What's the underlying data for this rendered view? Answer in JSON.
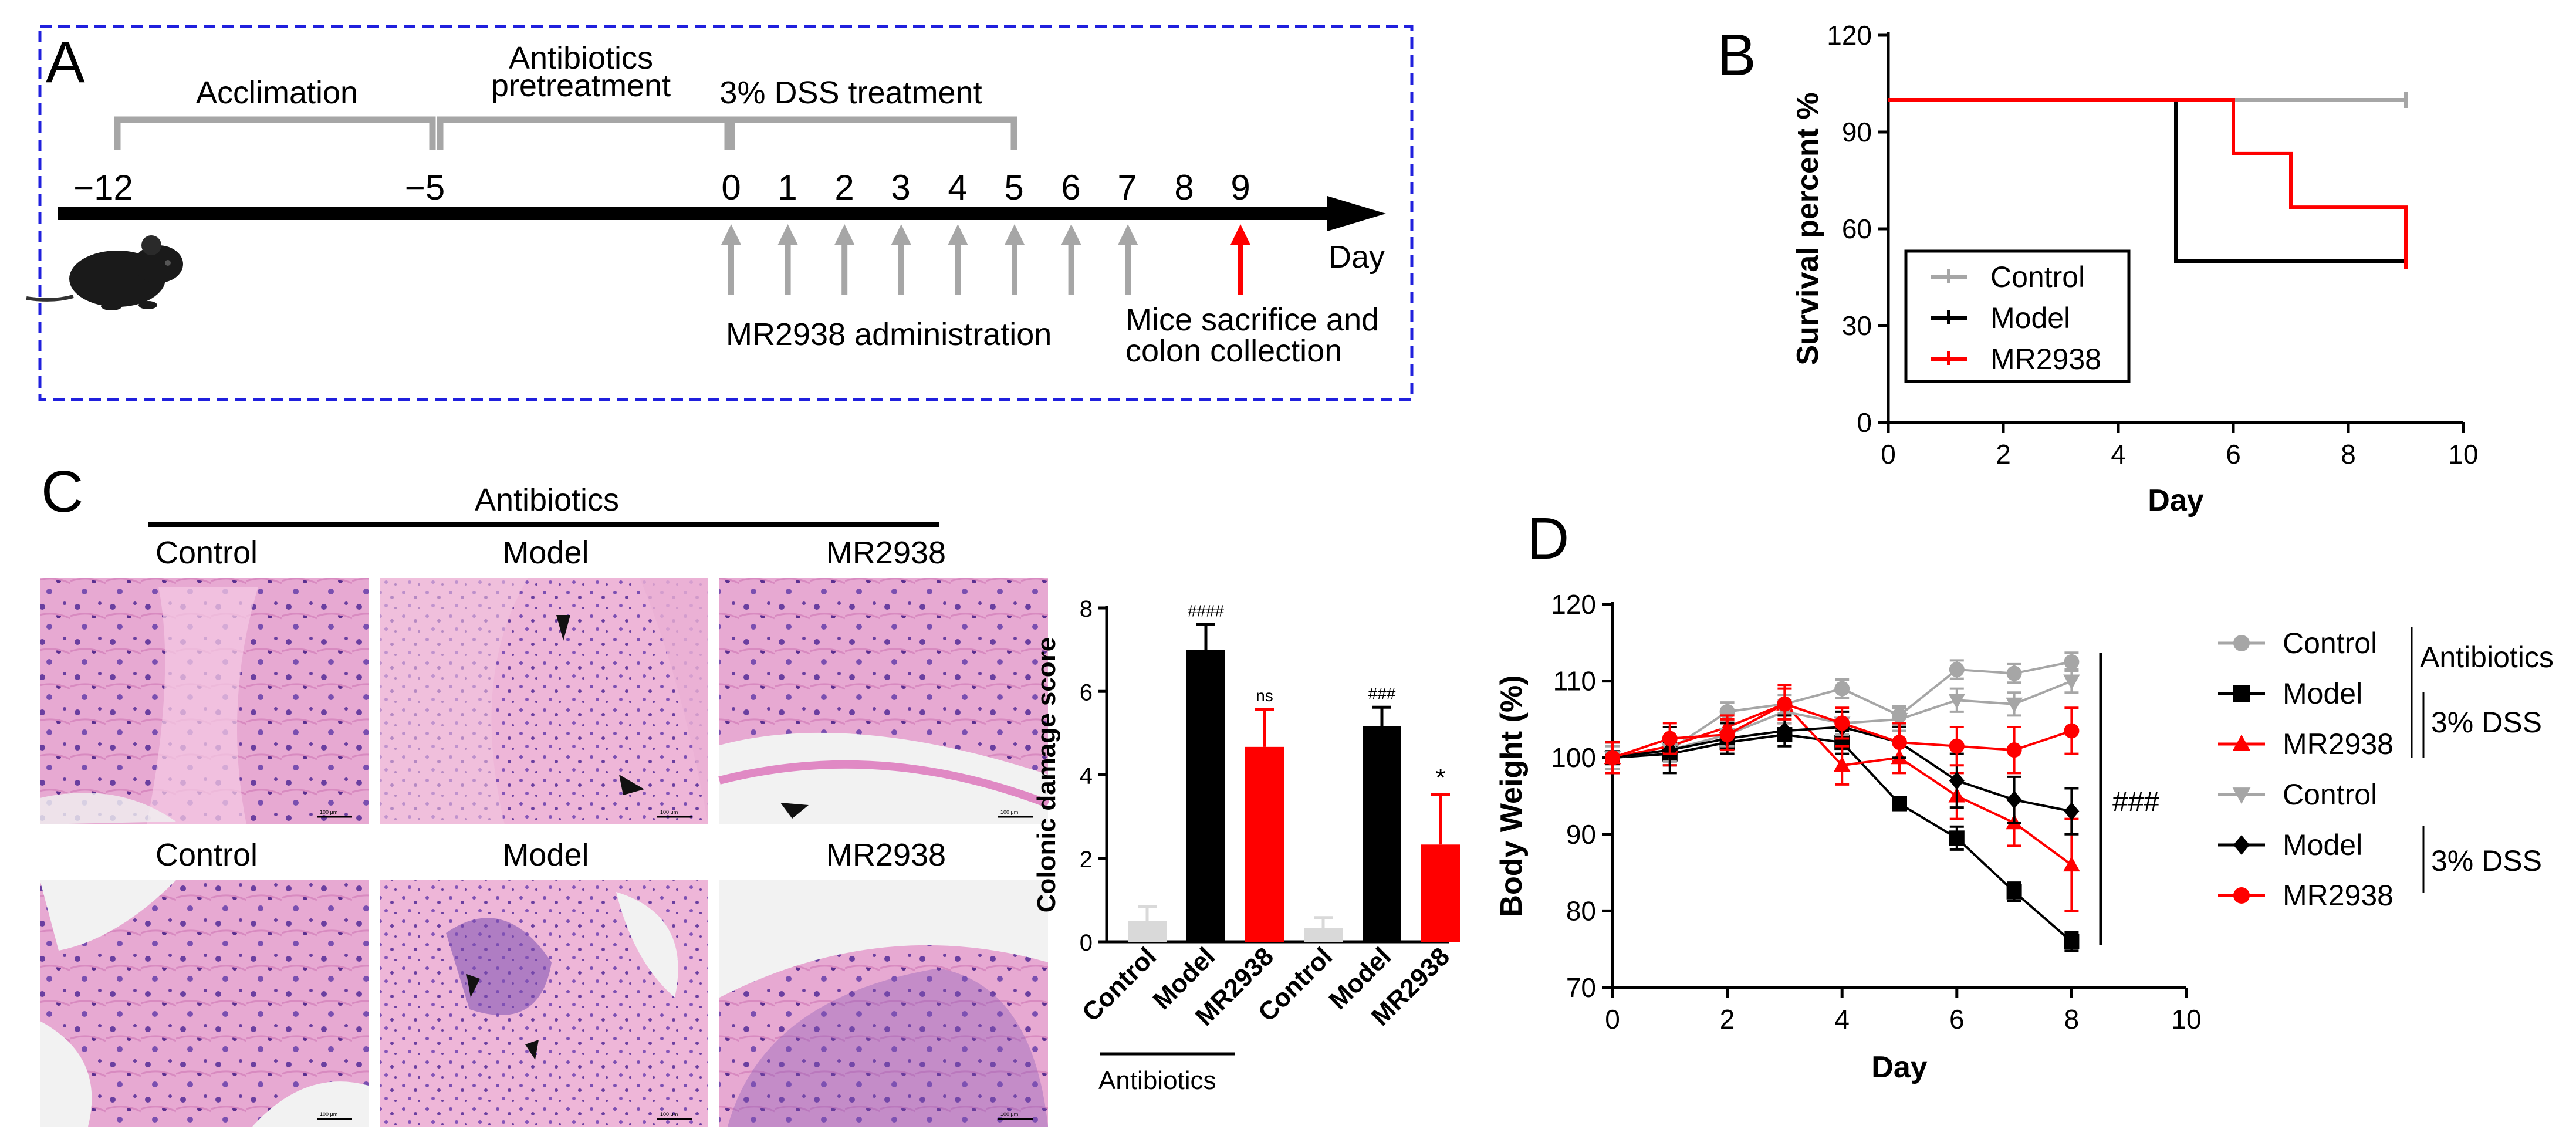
{
  "colors": {
    "control": "#a6a6a6",
    "control_light": "#d9d9d9",
    "model": "#000000",
    "mr2938": "#ff0000",
    "frame_blue": "#2020dd",
    "bracket_gray": "#a6a6a6"
  },
  "panel_labels": {
    "a": "A",
    "b": "B",
    "c": "C",
    "d": "D"
  },
  "panel_a": {
    "phases": [
      "Acclimation",
      "Antibiotics",
      "pretreatment",
      "3% DSS treatment"
    ],
    "ticks": [
      "−12",
      "−5",
      "0",
      "1",
      "2",
      "3",
      "4",
      "5",
      "6",
      "7",
      "8",
      "9"
    ],
    "day_label": "Day",
    "admin_label": "MR2938 administration",
    "sacrifice_label_1": "Mice sacrifice and",
    "sacrifice_label_2": "colon collection",
    "mouse_icon": "mouse-icon"
  },
  "panel_c": {
    "header": "Antibiotics",
    "top_row_labels": [
      "Control",
      "Model",
      "MR2938"
    ],
    "bottom_row_labels": [
      "Control",
      "Model",
      "MR2938"
    ],
    "scale_bar_label": "100 μm"
  },
  "chart_data": [
    {
      "id": "survival",
      "type": "line",
      "step": true,
      "xlabel": "Day",
      "ylabel": "Survival percent %",
      "xlim": [
        0,
        10
      ],
      "ylim": [
        0,
        120
      ],
      "xticks": [
        0,
        2,
        4,
        6,
        8,
        10
      ],
      "yticks": [
        0,
        30,
        60,
        90,
        120
      ],
      "legend": "bottom-left",
      "series": [
        {
          "name": "Control",
          "color": "#a6a6a6",
          "x": [
            0,
            9
          ],
          "y": [
            100,
            100
          ]
        },
        {
          "name": "Model",
          "color": "#000000",
          "x": [
            0,
            5,
            9
          ],
          "y": [
            100,
            50,
            50
          ]
        },
        {
          "name": "MR2938",
          "color": "#ff0000",
          "x": [
            0,
            6,
            7,
            9
          ],
          "y": [
            100,
            83.3,
            66.7,
            50
          ]
        }
      ]
    },
    {
      "id": "damage",
      "type": "bar",
      "ylabel": "Colonic damage score",
      "ylim": [
        0,
        8
      ],
      "yticks": [
        0,
        2,
        4,
        6,
        8
      ],
      "group_label": "Antibiotics",
      "categories": [
        "Control",
        "Model",
        "MR2938",
        "Control",
        "Model",
        "MR2938"
      ],
      "values": [
        0.5,
        7.0,
        4.67,
        0.33,
        5.17,
        2.33
      ],
      "errors": [
        0.35,
        0.6,
        0.9,
        0.25,
        0.45,
        1.2
      ],
      "colors": [
        "#d9d9d9",
        "#000000",
        "#ff0000",
        "#d9d9d9",
        "#000000",
        "#ff0000"
      ],
      "annotations": [
        "",
        "####",
        "ns",
        "",
        "###",
        "*"
      ]
    },
    {
      "id": "body-weight",
      "type": "line",
      "xlabel": "Day",
      "ylabel": "Body Weight (%)",
      "xlim": [
        0,
        10
      ],
      "ylim": [
        70,
        120
      ],
      "xticks": [
        0,
        2,
        4,
        6,
        8,
        10
      ],
      "yticks": [
        70,
        80,
        90,
        100,
        110,
        120
      ],
      "significance": "###",
      "legend_groups": [
        "Antibiotics",
        "3% DSS",
        "3% DSS"
      ],
      "x": [
        0,
        1,
        2,
        3,
        4,
        5,
        6,
        7,
        8
      ],
      "series": [
        {
          "name": "Control",
          "group": "abx",
          "marker": "circle",
          "color": "#a6a6a6",
          "values": [
            100,
            101,
            106,
            107,
            109,
            105.5,
            111.5,
            111,
            112.5
          ],
          "errors": [
            1.5,
            1.5,
            1.2,
            1.2,
            1.2,
            1.2,
            1.2,
            1.2,
            1.2
          ]
        },
        {
          "name": "Model",
          "group": "abx",
          "marker": "square",
          "color": "#000000",
          "values": [
            100,
            100.5,
            102,
            103,
            102,
            94,
            89.5,
            82.5,
            76
          ],
          "errors": [
            2,
            1.5,
            1.5,
            1.5,
            1.5,
            0.8,
            1.5,
            1.2,
            1.2
          ]
        },
        {
          "name": "MR2938",
          "group": "abx",
          "marker": "triangle-up",
          "color": "#ff0000",
          "values": [
            100,
            101.5,
            104,
            107,
            99,
            100,
            95,
            91.5,
            86
          ],
          "errors": [
            2,
            2.5,
            1.5,
            2.5,
            2.5,
            2,
            3,
            3,
            6
          ]
        },
        {
          "name": "Control",
          "group": "dss",
          "marker": "triangle-down",
          "color": "#a6a6a6",
          "values": [
            100,
            101,
            103,
            106,
            104.5,
            105,
            107.5,
            107,
            110
          ],
          "errors": [
            1.5,
            1.5,
            1.5,
            1.5,
            1.5,
            1.5,
            1.5,
            1.5,
            1.5
          ]
        },
        {
          "name": "Model",
          "group": "dss",
          "marker": "diamond",
          "color": "#000000",
          "values": [
            100,
            101,
            102.5,
            103.5,
            104,
            102,
            97,
            94.5,
            93
          ],
          "errors": [
            2,
            3,
            2,
            2,
            2,
            2,
            3.5,
            3,
            3
          ]
        },
        {
          "name": "MR2938",
          "group": "dss",
          "marker": "circle",
          "color": "#ff0000",
          "values": [
            100,
            102.5,
            103,
            107,
            104.5,
            102,
            101.5,
            101,
            103.5
          ],
          "errors": [
            2,
            2,
            2,
            2,
            2,
            2.5,
            2.5,
            3,
            3
          ]
        }
      ]
    }
  ]
}
